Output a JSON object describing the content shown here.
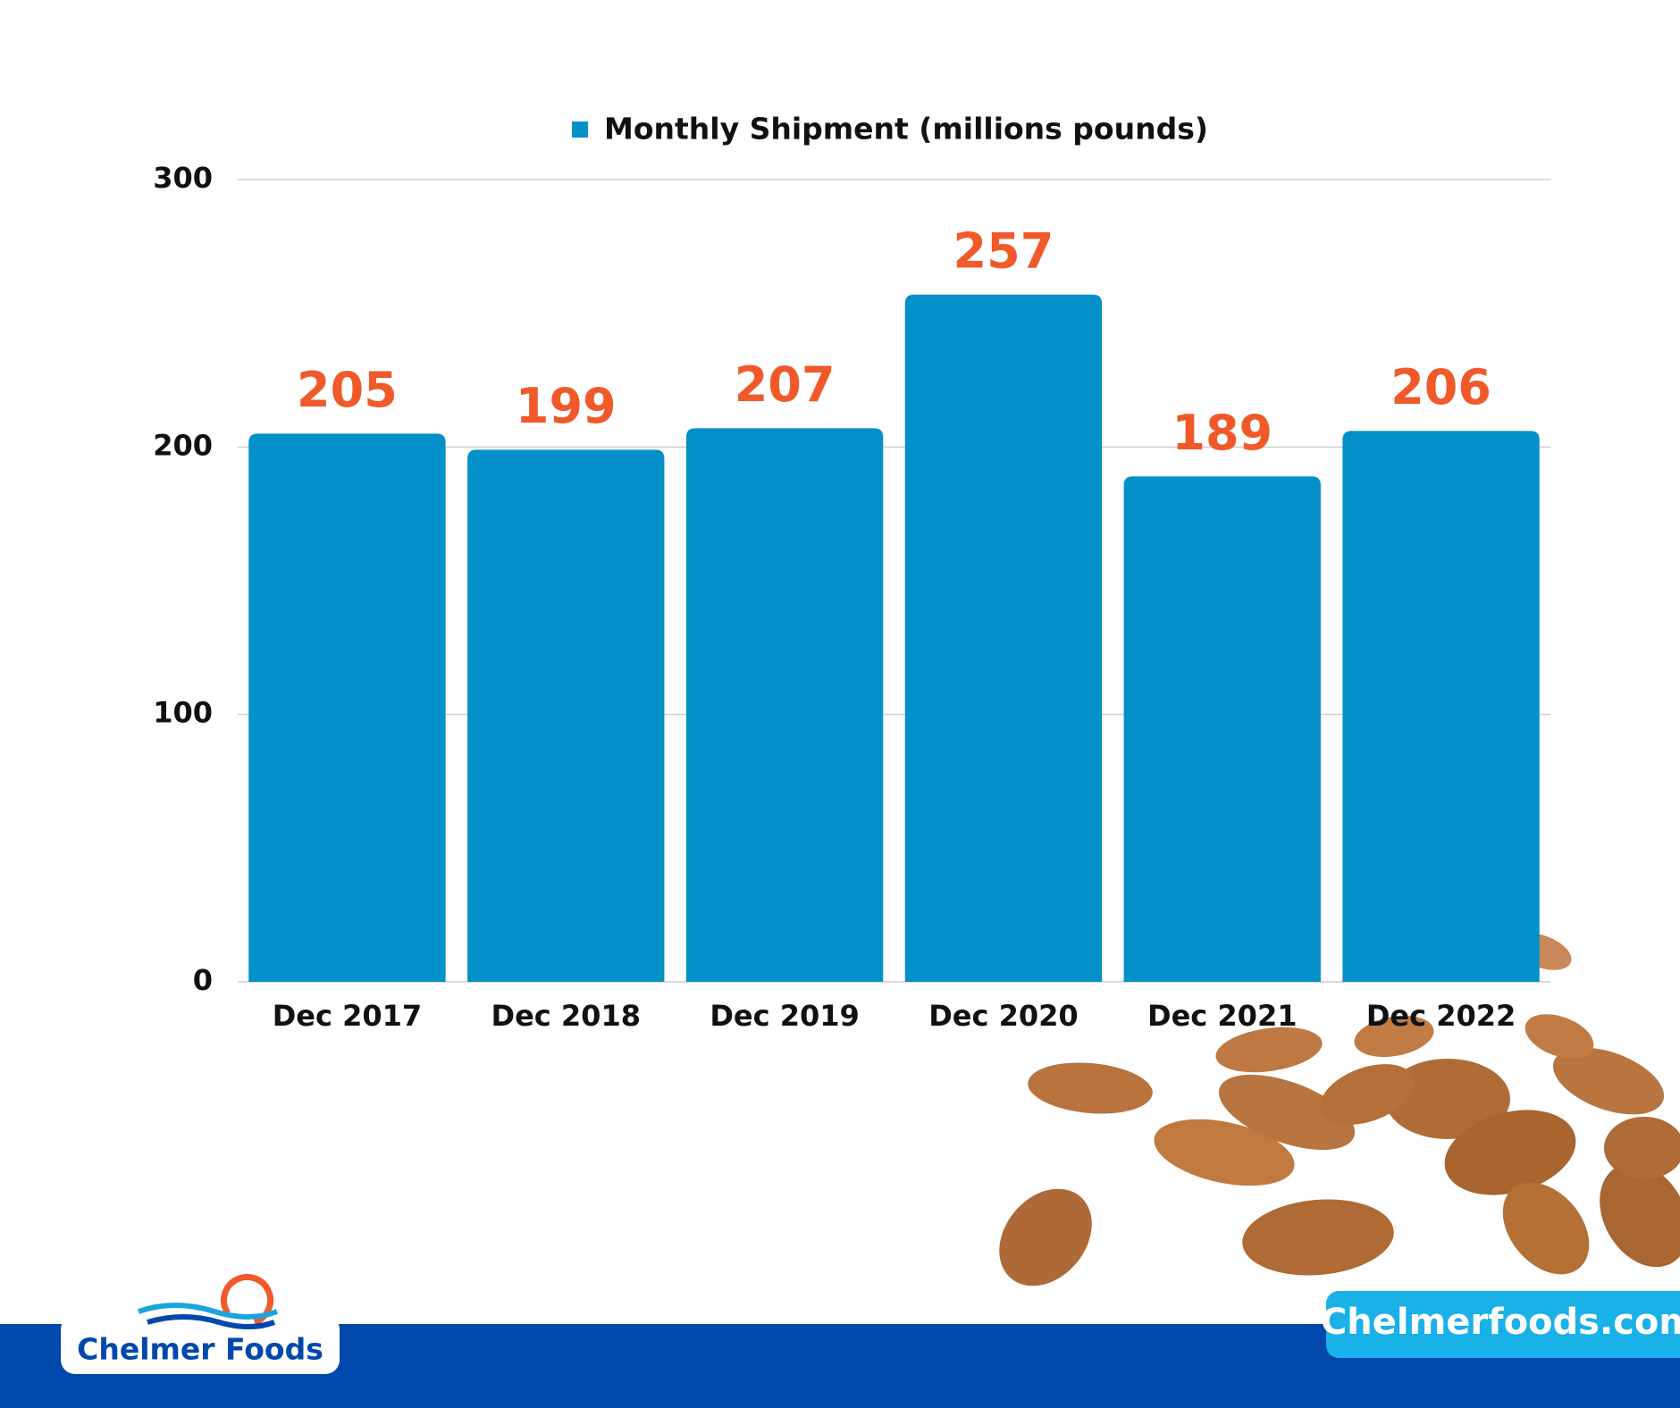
{
  "chart_data": {
    "type": "bar",
    "categories": [
      "Dec 2017",
      "Dec 2018",
      "Dec 2019",
      "Dec 2020",
      "Dec 2021",
      "Dec 2022"
    ],
    "series": [
      {
        "name": "Monthly Shipment (millions pounds)",
        "color": "#0390c9",
        "values": [
          205,
          199,
          207,
          257,
          189,
          206
        ]
      }
    ],
    "value_label_color": "#f05a2a",
    "ylim": [
      0,
      300
    ],
    "yticks": [
      0,
      100,
      200,
      300
    ],
    "grid": true
  },
  "footer": {
    "brand": "Chelmer Foods",
    "website": "Chelmerfoods.com"
  }
}
